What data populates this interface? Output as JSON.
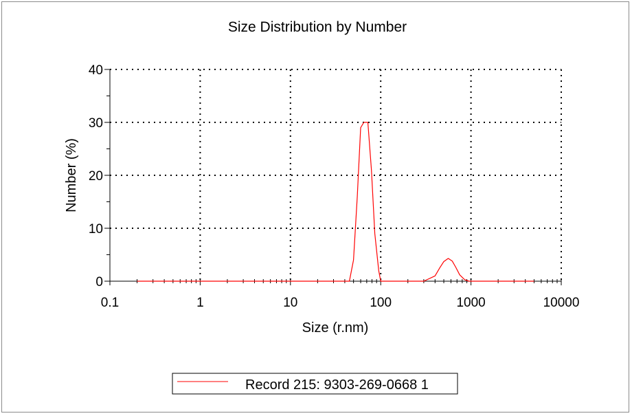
{
  "chart_data": {
    "type": "line",
    "title": "Size Distribution by Number",
    "xlabel": "Size (r.nm)",
    "ylabel": "Number (%)",
    "x_scale": "log",
    "xlim": [
      0.1,
      10000
    ],
    "ylim": [
      0,
      40
    ],
    "x_ticks": [
      "0.1",
      "1",
      "10",
      "100",
      "1000",
      "10000"
    ],
    "y_ticks": [
      "0",
      "10",
      "20",
      "30",
      "40"
    ],
    "grid": true,
    "legend_position": "bottom",
    "colors": {
      "series": "#ff0000",
      "grid": "#000000"
    },
    "series": [
      {
        "name": "Record 215: 9303-269-0668 1",
        "color": "#ff0000",
        "x": [
          0.2,
          10,
          45,
          50,
          55,
          60,
          65,
          72,
          79,
          86,
          95,
          100,
          300,
          400,
          450,
          500,
          560,
          620,
          680,
          750,
          850,
          950,
          1000,
          5000
        ],
        "y": [
          0,
          0,
          0,
          4,
          16,
          29,
          30,
          30,
          21,
          9,
          2,
          0,
          0,
          1,
          2.5,
          3.7,
          4.3,
          3.8,
          2.6,
          1.2,
          0.3,
          0,
          0,
          0
        ]
      }
    ]
  }
}
